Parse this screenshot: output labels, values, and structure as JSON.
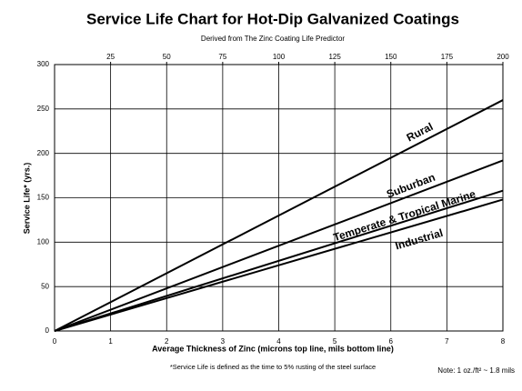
{
  "chart_data": {
    "type": "line",
    "title": "Service Life Chart for Hot-Dip Galvanized Coatings",
    "subtitle": "Derived from The Zinc Coating Life Predictor",
    "ylabel": "Service Life* (yrs.)",
    "xlabel": "Average Thickness of Zinc (microns top line, mils bottom line)",
    "footnote": "*Service Life is defined as the time to 5% rusting of the steel surface",
    "note": "Note: 1 oz./ft² ~ 1.8 mils",
    "x": [
      0,
      8
    ],
    "xlim": [
      0,
      8
    ],
    "xticks": [
      0,
      1,
      2,
      3,
      4,
      5,
      6,
      7,
      8
    ],
    "x2lim": [
      0,
      200
    ],
    "x2ticks": [
      25,
      50,
      75,
      100,
      125,
      150,
      175,
      200
    ],
    "ylim": [
      0,
      300
    ],
    "yticks": [
      0,
      50,
      100,
      150,
      200,
      250,
      300
    ],
    "grid": true,
    "series": [
      {
        "name": "Rural",
        "color": "#000000",
        "values": [
          0,
          260
        ]
      },
      {
        "name": "Suburban",
        "color": "#000000",
        "values": [
          0,
          192
        ]
      },
      {
        "name": "Temperate & Tropical Marine",
        "color": "#000000",
        "values": [
          0,
          158
        ]
      },
      {
        "name": "Industrial",
        "color": "#000000",
        "values": [
          0,
          148
        ]
      }
    ]
  }
}
